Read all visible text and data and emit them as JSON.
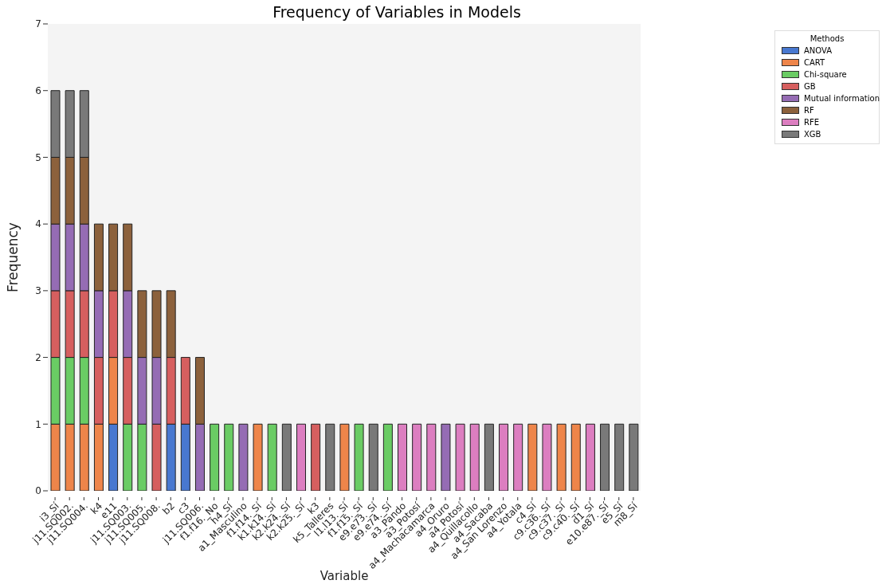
{
  "chart_data": {
    "type": "bar",
    "title": "Frequency of Variables in Models",
    "xlabel": "Variable",
    "ylabel": "Frequency",
    "legend_title": "Methods",
    "stacked": true,
    "legend": "top right",
    "grid": false,
    "categories": [
      "i3_Sí",
      "j11.SQ002.",
      "j11.SQ004.",
      "k4",
      "e11",
      "j11.SQ003.",
      "j11.SQ005.",
      "j11.SQ008.",
      "b2",
      "c3",
      "j11.SQ006.",
      "f1.f16._No",
      "h4_Sí",
      "a1_Masculino",
      "f1.f14._Sí",
      "k1.k14._Sí",
      "k2.k24._Sí",
      "k2.k25._Sí",
      "k3",
      "k5_Talleres",
      "l1.l13._Sí",
      "f1.f15._Sí",
      "e9.e73._Sí",
      "e9.e74._Sí",
      "a3_Pando",
      "a3_Potosí",
      "a4_Machacamarca",
      "a4_Oruro",
      "a4_Potosí",
      "a4_Quillacollo",
      "a4_Sacaba",
      "a4_San Lorenzo",
      "a4_Yotala",
      "c4_Sí",
      "c9.c36._Sí",
      "c9.c37._Sí",
      "c9.c40._Sí",
      "d1_Sí",
      "e10.e87._Sí",
      "e5_Sí",
      "m8_Sí"
    ],
    "series": [
      {
        "name": "ANOVA",
        "color": "#4878d0",
        "values": [
          null,
          null,
          null,
          null,
          1,
          null,
          null,
          null,
          1,
          1,
          null,
          null,
          null,
          null,
          null,
          null,
          null,
          null,
          null,
          null,
          null,
          null,
          null,
          null,
          null,
          null,
          null,
          null,
          null,
          null,
          null,
          null,
          null,
          null,
          null,
          null,
          null,
          null,
          null,
          null,
          null
        ]
      },
      {
        "name": "CART",
        "color": "#ee854a",
        "values": [
          1,
          1,
          1,
          1,
          1,
          null,
          null,
          null,
          null,
          null,
          null,
          null,
          null,
          null,
          1,
          null,
          null,
          null,
          null,
          null,
          1,
          null,
          null,
          null,
          null,
          null,
          null,
          null,
          null,
          null,
          null,
          null,
          null,
          1,
          null,
          1,
          1,
          null,
          null,
          null,
          null
        ]
      },
      {
        "name": "Chi-square",
        "color": "#6acc64",
        "values": [
          1,
          1,
          1,
          null,
          null,
          1,
          1,
          null,
          null,
          null,
          null,
          1,
          1,
          null,
          null,
          1,
          null,
          null,
          null,
          null,
          null,
          1,
          null,
          1,
          null,
          null,
          null,
          null,
          null,
          null,
          null,
          null,
          null,
          null,
          null,
          null,
          null,
          null,
          null,
          null,
          null
        ]
      },
      {
        "name": "GB",
        "color": "#d65f5f",
        "values": [
          1,
          1,
          1,
          1,
          1,
          1,
          null,
          1,
          1,
          1,
          null,
          null,
          null,
          null,
          null,
          null,
          null,
          null,
          1,
          null,
          null,
          null,
          null,
          null,
          null,
          null,
          null,
          null,
          null,
          null,
          null,
          null,
          null,
          null,
          null,
          null,
          null,
          null,
          null,
          null,
          null
        ]
      },
      {
        "name": "Mutual information",
        "color": "#956cb4",
        "values": [
          1,
          1,
          1,
          1,
          null,
          1,
          1,
          1,
          null,
          null,
          1,
          null,
          null,
          1,
          null,
          null,
          null,
          null,
          null,
          null,
          null,
          null,
          null,
          null,
          null,
          null,
          null,
          1,
          null,
          null,
          null,
          null,
          null,
          null,
          null,
          null,
          null,
          null,
          null,
          null,
          null
        ]
      },
      {
        "name": "RF",
        "color": "#8c613c",
        "values": [
          1,
          1,
          1,
          1,
          1,
          1,
          1,
          1,
          1,
          null,
          1,
          null,
          null,
          null,
          null,
          null,
          null,
          null,
          null,
          null,
          null,
          null,
          null,
          null,
          null,
          null,
          null,
          null,
          null,
          null,
          null,
          null,
          null,
          null,
          null,
          null,
          null,
          null,
          null,
          null,
          null
        ]
      },
      {
        "name": "RFE",
        "color": "#dc7ec0",
        "values": [
          null,
          null,
          null,
          null,
          null,
          null,
          null,
          null,
          null,
          null,
          null,
          null,
          null,
          null,
          null,
          null,
          null,
          1,
          null,
          null,
          null,
          null,
          null,
          null,
          1,
          1,
          1,
          null,
          1,
          1,
          null,
          1,
          1,
          null,
          1,
          null,
          null,
          1,
          null,
          null,
          null
        ]
      },
      {
        "name": "XGB",
        "color": "#797979",
        "values": [
          1,
          1,
          1,
          null,
          null,
          null,
          null,
          null,
          null,
          null,
          null,
          null,
          null,
          null,
          null,
          null,
          1,
          null,
          null,
          1,
          null,
          null,
          1,
          null,
          null,
          null,
          null,
          null,
          null,
          null,
          1,
          null,
          null,
          null,
          null,
          null,
          null,
          null,
          1,
          1,
          1
        ]
      }
    ],
    "ylim": [
      0,
      7
    ],
    "yticks": [
      0,
      1,
      2,
      3,
      4,
      5,
      6,
      7
    ]
  }
}
